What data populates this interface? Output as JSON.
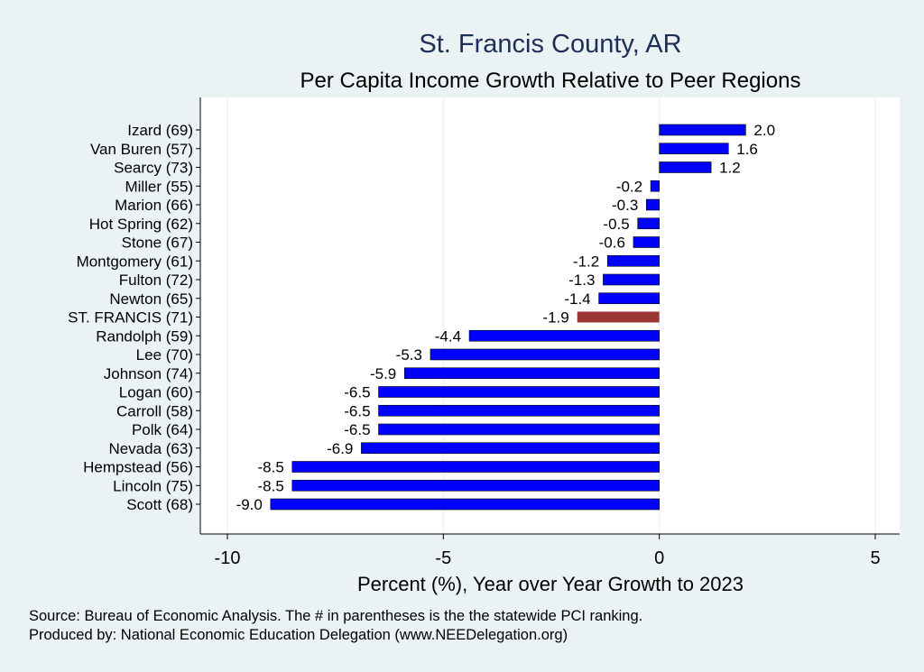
{
  "chart_data": {
    "type": "bar",
    "orientation": "horizontal",
    "title": "St. Francis County, AR",
    "subtitle": "Per Capita Income Growth Relative to Peer Regions",
    "xlabel": "Percent (%), Year over Year Growth to 2023",
    "xlim": [
      -10,
      5
    ],
    "xticks": [
      "-10",
      "-5",
      "0",
      "5"
    ],
    "xtick_values": [
      -10,
      -5,
      0,
      5
    ],
    "grid": "vertical",
    "categories": [
      "Izard (69)",
      "Van Buren (57)",
      "Searcy (73)",
      "Miller (55)",
      "Marion (66)",
      "Hot Spring (62)",
      "Stone (67)",
      "Montgomery (61)",
      "Fulton (72)",
      "Newton (65)",
      "ST. FRANCIS (71)",
      "Randolph (59)",
      "Lee (70)",
      "Johnson (74)",
      "Logan (60)",
      "Carroll (58)",
      "Polk (64)",
      "Nevada (63)",
      "Hempstead (56)",
      "Lincoln (75)",
      "Scott (68)"
    ],
    "values": [
      2.0,
      1.6,
      1.2,
      -0.2,
      -0.3,
      -0.5,
      -0.6,
      -1.2,
      -1.3,
      -1.4,
      -1.9,
      -4.4,
      -5.3,
      -5.9,
      -6.5,
      -6.5,
      -6.5,
      -6.9,
      -8.5,
      -8.5,
      -9.0
    ],
    "value_labels": [
      "2.0",
      "1.6",
      "1.2",
      "-0.2",
      "-0.3",
      "-0.5",
      "-0.6",
      "-1.2",
      "-1.3",
      "-1.4",
      "-1.9",
      "-4.4",
      "-5.3",
      "-5.9",
      "-6.5",
      "-6.5",
      "-6.5",
      "-6.9",
      "-8.5",
      "-8.5",
      "-9.0"
    ],
    "highlight_index": 10,
    "colors": {
      "bar": "#0000ff",
      "highlight": "#9b3535",
      "title": "#1e2f57",
      "background": "#eaf2f3",
      "plot_background": "#ffffff",
      "grid": "#e8eef0"
    }
  },
  "footnotes": {
    "source": "Source: Bureau of Economic Analysis. The # in parentheses is the the statewide PCI ranking.",
    "produced_by": "Produced by: National Economic Education Delegation (www.NEEDelegation.org)"
  }
}
